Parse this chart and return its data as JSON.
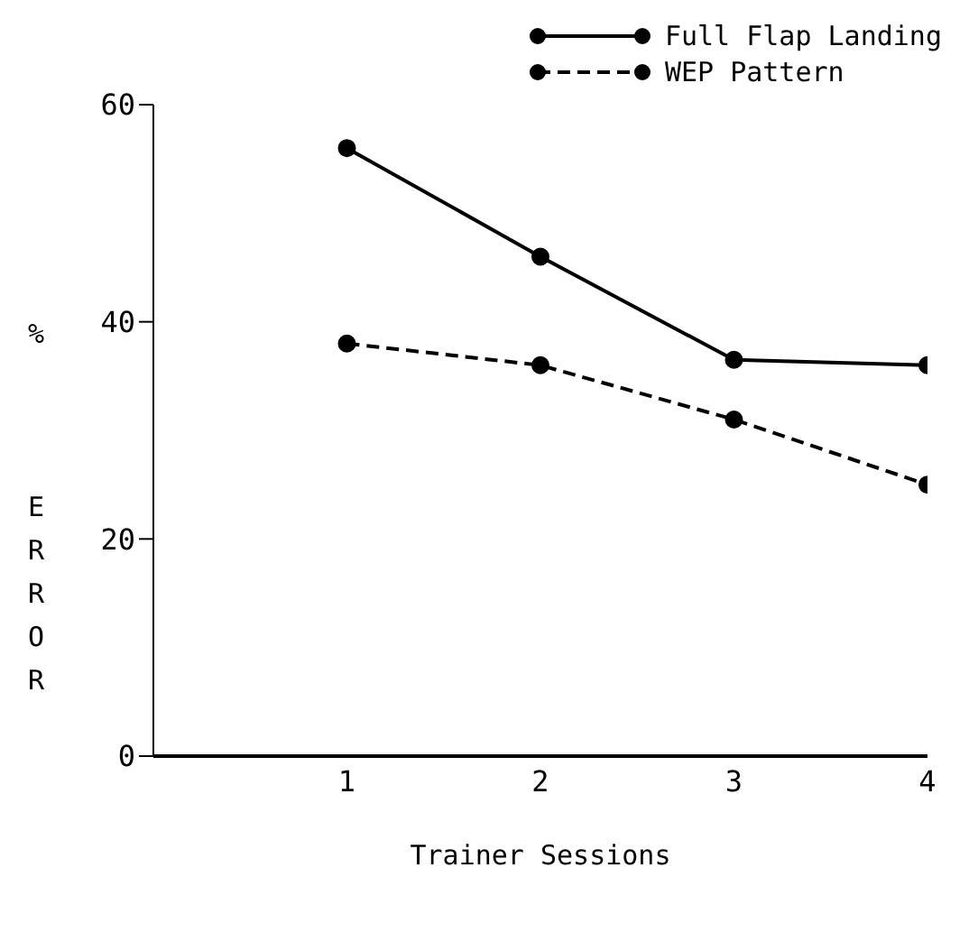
{
  "chart_data": {
    "type": "line",
    "xlabel": "Trainer Sessions",
    "ylabel": "% ERROR",
    "x": [
      1,
      2,
      3,
      4
    ],
    "xlim": [
      0,
      4
    ],
    "xticks": [
      1,
      2,
      3,
      4
    ],
    "ylim": [
      0,
      60
    ],
    "yticks": [
      0,
      20,
      40,
      60
    ],
    "series": [
      {
        "name": "Full Flap Landing",
        "color": "#000000",
        "values": [
          56,
          46,
          36.5,
          36
        ],
        "line_style": "solid"
      },
      {
        "name": "WEP Pattern",
        "color": "#000000",
        "values": [
          38,
          36,
          31,
          25
        ],
        "line_style": "dashed"
      }
    ],
    "marker": "circle",
    "legend": "top right",
    "grid": false
  }
}
